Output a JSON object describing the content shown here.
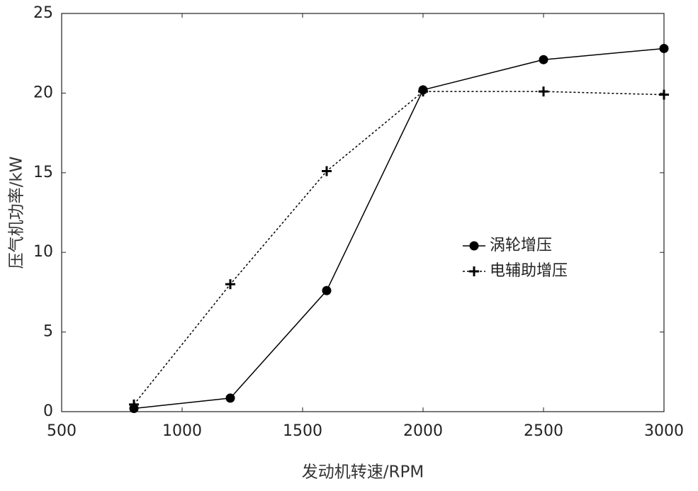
{
  "chart_data": {
    "type": "line",
    "x_label": "发动机转速/RPM",
    "y_label": "压气机功率/kW",
    "x": [
      800,
      1200,
      1600,
      2000,
      2500,
      3000
    ],
    "series": [
      {
        "name": "涡轮增压",
        "color": "#000000",
        "dash": "solid",
        "marker": "circle",
        "values": [
          0.2,
          0.85,
          7.6,
          20.2,
          22.1,
          22.8
        ]
      },
      {
        "name": "电辅助增压",
        "color": "#000000",
        "dash": "dotted",
        "marker": "plus",
        "values": [
          0.45,
          8.0,
          15.1,
          20.1,
          20.1,
          19.9
        ]
      }
    ],
    "xlim": [
      500,
      3000
    ],
    "xticks": [
      500,
      1000,
      1500,
      2000,
      2500,
      3000
    ],
    "ylim": [
      0,
      25
    ],
    "yticks": [
      0,
      5,
      10,
      15,
      20,
      25
    ],
    "grid": false,
    "legend": "right"
  }
}
